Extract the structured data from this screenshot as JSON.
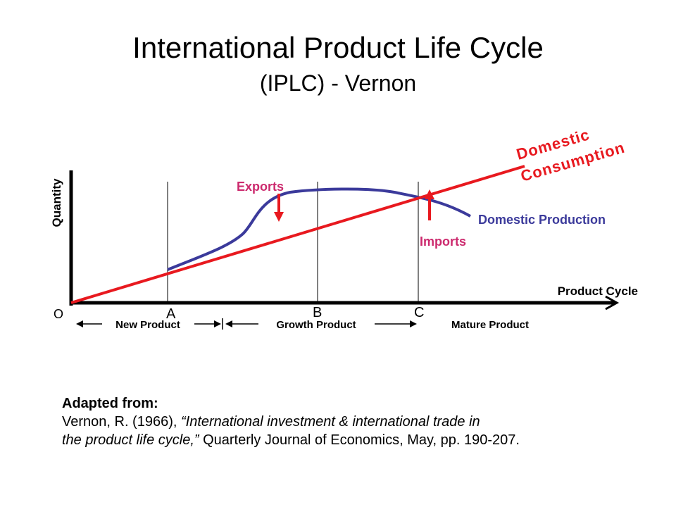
{
  "title": "International Product Life Cycle",
  "subtitle": "(IPLC) - Vernon",
  "diagram": {
    "y_axis_label": "Quantity",
    "x_axis_label": "Product Cycle",
    "origin_label": "O",
    "point_a": "A",
    "point_b": "B",
    "point_c": "C",
    "stage_new": "New Product",
    "stage_growth": "Growth Product",
    "stage_mature": "Mature Product",
    "domestic_consumption_line1": "Domestic",
    "domestic_consumption_line2": "Consumption",
    "domestic_production": "Domestic Production",
    "exports": "Exports",
    "imports": "Imports",
    "colors": {
      "consumption": "#e8191f",
      "production": "#3b3a9b",
      "trade_labels": "#cc2a6e",
      "arrows": "#e8191f"
    }
  },
  "reference": {
    "heading": "Adapted from:",
    "line1_plain": "Vernon, R. (1966), ",
    "line1_italic": "“International investment & international trade in",
    "line2_italic": "the product life cycle,”",
    "line2_plain": " Quarterly Journal of Economics, May, pp. 190-207."
  }
}
